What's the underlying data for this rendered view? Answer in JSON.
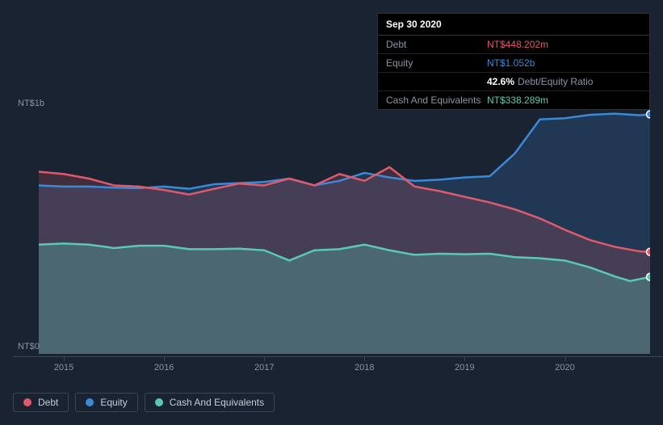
{
  "tooltip": {
    "date": "Sep 30 2020",
    "rows": [
      {
        "label": "Debt",
        "value": "NT$448.202m",
        "color": "#e05a6a"
      },
      {
        "label": "Equity",
        "value": "NT$1.052b",
        "color": "#3b8ad8"
      },
      {
        "label": "",
        "pct": "42.6%",
        "text": "Debt/Equity Ratio"
      },
      {
        "label": "Cash And Equivalents",
        "value": "NT$338.289m",
        "color": "#5bc8b3"
      }
    ]
  },
  "chart": {
    "type": "area",
    "background": "#1a2332",
    "plot_background": "#1e2a3a",
    "y_axis": {
      "labels": [
        {
          "text": "NT$1b",
          "value": 1000
        },
        {
          "text": "NT$0",
          "value": 0
        }
      ],
      "min": 0,
      "max": 1100,
      "label_color": "#8a94a6",
      "label_fontsize": 11
    },
    "x_axis": {
      "min": 2014.75,
      "max": 2020.85,
      "ticks": [
        2015,
        2016,
        2017,
        2018,
        2019,
        2020
      ],
      "label_color": "#8a94a6",
      "label_fontsize": 11,
      "line_color": "#3a4556"
    },
    "series": [
      {
        "name": "Equity",
        "color": "#3b8ad8",
        "fill": "rgba(59,138,216,0.20)",
        "stroke_width": 2.5,
        "end_marker": true,
        "points": [
          [
            2014.75,
            740
          ],
          [
            2015.0,
            735
          ],
          [
            2015.25,
            735
          ],
          [
            2015.5,
            730
          ],
          [
            2015.75,
            728
          ],
          [
            2016.0,
            735
          ],
          [
            2016.25,
            725
          ],
          [
            2016.5,
            745
          ],
          [
            2016.75,
            750
          ],
          [
            2017.0,
            755
          ],
          [
            2017.25,
            770
          ],
          [
            2017.5,
            740
          ],
          [
            2017.75,
            760
          ],
          [
            2018.0,
            795
          ],
          [
            2018.25,
            775
          ],
          [
            2018.5,
            760
          ],
          [
            2018.75,
            765
          ],
          [
            2019.0,
            775
          ],
          [
            2019.25,
            780
          ],
          [
            2019.5,
            880
          ],
          [
            2019.75,
            1030
          ],
          [
            2020.0,
            1035
          ],
          [
            2020.25,
            1050
          ],
          [
            2020.5,
            1055
          ],
          [
            2020.75,
            1048
          ],
          [
            2020.85,
            1052
          ]
        ]
      },
      {
        "name": "Debt",
        "color": "#e05a6a",
        "fill": "rgba(224,90,106,0.20)",
        "stroke_width": 2.5,
        "end_marker": true,
        "points": [
          [
            2014.75,
            800
          ],
          [
            2015.0,
            790
          ],
          [
            2015.25,
            770
          ],
          [
            2015.5,
            740
          ],
          [
            2015.75,
            735
          ],
          [
            2016.0,
            720
          ],
          [
            2016.25,
            700
          ],
          [
            2016.5,
            725
          ],
          [
            2016.75,
            748
          ],
          [
            2017.0,
            740
          ],
          [
            2017.25,
            770
          ],
          [
            2017.5,
            740
          ],
          [
            2017.75,
            790
          ],
          [
            2018.0,
            760
          ],
          [
            2018.25,
            820
          ],
          [
            2018.5,
            735
          ],
          [
            2018.75,
            715
          ],
          [
            2019.0,
            690
          ],
          [
            2019.25,
            665
          ],
          [
            2019.5,
            635
          ],
          [
            2019.75,
            595
          ],
          [
            2020.0,
            545
          ],
          [
            2020.25,
            500
          ],
          [
            2020.5,
            470
          ],
          [
            2020.75,
            450
          ],
          [
            2020.85,
            448
          ]
        ]
      },
      {
        "name": "Cash And Equivalents",
        "color": "#5bc8b3",
        "fill": "rgba(91,200,179,0.30)",
        "stroke_width": 2.5,
        "end_marker": true,
        "points": [
          [
            2014.75,
            480
          ],
          [
            2015.0,
            485
          ],
          [
            2015.25,
            480
          ],
          [
            2015.5,
            465
          ],
          [
            2015.75,
            475
          ],
          [
            2016.0,
            475
          ],
          [
            2016.25,
            460
          ],
          [
            2016.5,
            460
          ],
          [
            2016.75,
            462
          ],
          [
            2017.0,
            455
          ],
          [
            2017.25,
            410
          ],
          [
            2017.5,
            455
          ],
          [
            2017.75,
            460
          ],
          [
            2018.0,
            480
          ],
          [
            2018.25,
            455
          ],
          [
            2018.5,
            435
          ],
          [
            2018.75,
            440
          ],
          [
            2019.0,
            438
          ],
          [
            2019.25,
            440
          ],
          [
            2019.5,
            425
          ],
          [
            2019.75,
            420
          ],
          [
            2020.0,
            410
          ],
          [
            2020.25,
            380
          ],
          [
            2020.5,
            340
          ],
          [
            2020.65,
            320
          ],
          [
            2020.85,
            338
          ]
        ]
      }
    ],
    "legend": {
      "items": [
        {
          "label": "Debt",
          "color": "#e05a6a"
        },
        {
          "label": "Equity",
          "color": "#3b8ad8"
        },
        {
          "label": "Cash And Equivalents",
          "color": "#5bc8b3"
        }
      ],
      "border_color": "#3a4556",
      "text_color": "#c5ccd6",
      "fontsize": 12
    }
  }
}
